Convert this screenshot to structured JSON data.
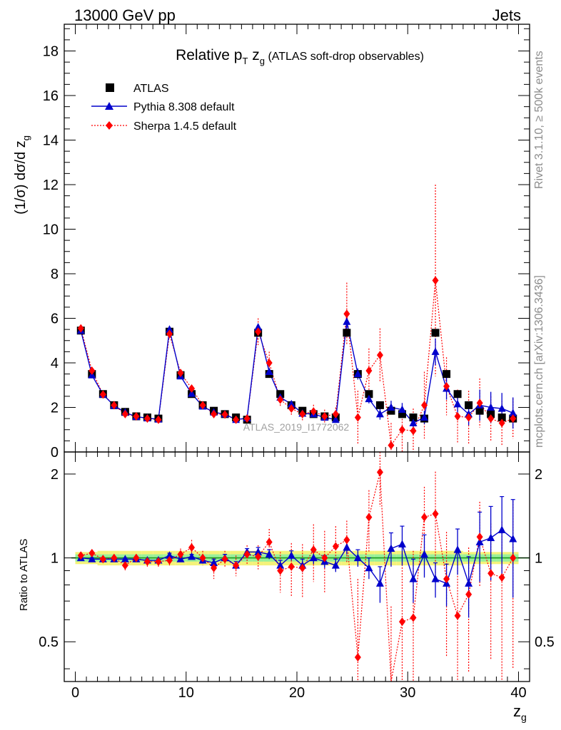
{
  "header": {
    "energy": "13000 GeV pp",
    "category": "Jets"
  },
  "side_text": {
    "rivet": "Rivet 3.1.10, ≥ 500k events",
    "mcplots": "mcplots.cern.ch [arXiv:1306.3436]"
  },
  "chart_data": {
    "type": "scatter",
    "title": "Relative pT zg (ATLAS soft-drop observables)",
    "title_parts": {
      "main": "Relative p",
      "sub1": "T",
      "mid": " z",
      "sub2": "g",
      "rest": " (ATLAS soft-drop observables)"
    },
    "watermark": "ATLAS_2019_I1772062",
    "xlabel": {
      "main": "z",
      "sub": "g"
    },
    "ylabel": {
      "main": "(1/σ) dσ/d z",
      "sub": "g"
    },
    "ratio_ylabel": "Ratio to ATLAS",
    "xlim": [
      -1,
      41
    ],
    "ylim": [
      0,
      19.2
    ],
    "ratio_ylim": [
      0.36,
      2.4
    ],
    "x_ticks": [
      "0",
      "10",
      "20",
      "30",
      "40"
    ],
    "y_ticks": [
      "0",
      "2",
      "4",
      "6",
      "8",
      "10",
      "12",
      "14",
      "16",
      "18"
    ],
    "ratio_ticks": [
      "0.5",
      "1",
      "2"
    ],
    "legend": [
      "ATLAS",
      "Pythia 8.308 default",
      "Sherpa 1.4.5 default"
    ],
    "x": [
      0.5,
      1.5,
      2.5,
      3.5,
      4.5,
      5.5,
      6.5,
      7.5,
      8.5,
      9.5,
      10.5,
      11.5,
      12.5,
      13.5,
      14.5,
      15.5,
      16.5,
      17.5,
      18.5,
      19.5,
      20.5,
      21.5,
      22.5,
      23.5,
      24.5,
      25.5,
      26.5,
      27.5,
      28.5,
      29.5,
      30.5,
      31.5,
      32.5,
      33.5,
      34.5,
      35.5,
      36.5,
      37.5,
      38.5,
      39.5
    ],
    "series": [
      {
        "name": "ATLAS",
        "values": [
          5.45,
          3.5,
          2.6,
          2.1,
          1.8,
          1.6,
          1.55,
          1.5,
          5.4,
          3.45,
          2.6,
          2.1,
          1.85,
          1.7,
          1.55,
          1.45,
          5.35,
          3.5,
          2.6,
          2.1,
          1.85,
          1.7,
          1.6,
          1.55,
          5.35,
          3.5,
          2.6,
          2.1,
          1.85,
          1.7,
          1.55,
          1.5,
          5.35,
          3.5,
          2.6,
          2.1,
          1.85,
          1.7,
          1.55,
          1.5
        ]
      },
      {
        "name": "Pythia 8.308 default",
        "values": [
          5.45,
          3.45,
          2.58,
          2.08,
          1.78,
          1.58,
          1.52,
          1.47,
          5.5,
          3.4,
          2.62,
          2.05,
          1.78,
          1.7,
          1.45,
          1.52,
          5.6,
          3.6,
          2.45,
          2.15,
          1.73,
          1.7,
          1.55,
          1.45,
          5.85,
          3.5,
          2.38,
          1.7,
          2.0,
          1.9,
          1.3,
          1.55,
          4.5,
          2.85,
          2.15,
          1.7,
          2.1,
          2.0,
          1.95,
          1.75
        ],
        "errors": [
          0.05,
          0.05,
          0.05,
          0.05,
          0.05,
          0.05,
          0.05,
          0.05,
          0.08,
          0.06,
          0.05,
          0.05,
          0.05,
          0.05,
          0.05,
          0.05,
          0.15,
          0.12,
          0.1,
          0.1,
          0.1,
          0.1,
          0.1,
          0.1,
          0.3,
          0.25,
          0.2,
          0.25,
          0.3,
          0.3,
          0.25,
          0.3,
          0.6,
          0.5,
          0.5,
          0.5,
          0.7,
          0.7,
          0.7,
          0.7
        ]
      },
      {
        "name": "Sherpa 1.4.5 default",
        "values": [
          5.55,
          3.65,
          2.58,
          2.1,
          1.7,
          1.6,
          1.5,
          1.45,
          5.3,
          3.55,
          2.85,
          2.1,
          1.7,
          1.68,
          1.45,
          1.5,
          5.4,
          4.0,
          2.35,
          1.95,
          1.7,
          1.82,
          1.6,
          1.7,
          6.2,
          1.55,
          3.65,
          4.35,
          0.3,
          1.0,
          0.95,
          2.1,
          7.7,
          2.95,
          1.6,
          1.55,
          2.2,
          1.5,
          1.3,
          1.5
        ],
        "errors": [
          0.08,
          0.08,
          0.08,
          0.08,
          0.08,
          0.08,
          0.08,
          0.08,
          0.2,
          0.15,
          0.15,
          0.1,
          0.1,
          0.1,
          0.1,
          0.1,
          0.6,
          0.5,
          0.3,
          0.3,
          0.3,
          0.3,
          0.3,
          0.3,
          1.4,
          1.2,
          1.0,
          1.2,
          1.0,
          1.0,
          1.0,
          1.5,
          4.3,
          1.3,
          1.2,
          1.2,
          1.1,
          1.0,
          1.0,
          0.9
        ]
      }
    ],
    "ratio": {
      "pythia": [
        1.0,
        0.99,
        0.99,
        0.99,
        0.99,
        0.99,
        0.98,
        0.98,
        1.02,
        0.99,
        1.01,
        0.98,
        0.96,
        1.0,
        0.94,
        1.05,
        1.05,
        1.03,
        0.94,
        1.02,
        0.94,
        1.0,
        0.97,
        0.94,
        1.09,
        1.0,
        0.92,
        0.81,
        1.08,
        1.12,
        0.84,
        1.03,
        0.84,
        0.81,
        1.07,
        0.81,
        1.14,
        1.18,
        1.26,
        1.17
      ],
      "pythia_err": [
        0.01,
        0.01,
        0.01,
        0.01,
        0.01,
        0.01,
        0.01,
        0.01,
        0.02,
        0.02,
        0.02,
        0.02,
        0.03,
        0.03,
        0.03,
        0.03,
        0.04,
        0.04,
        0.04,
        0.04,
        0.05,
        0.05,
        0.05,
        0.05,
        0.06,
        0.07,
        0.08,
        0.12,
        0.15,
        0.18,
        0.15,
        0.18,
        0.12,
        0.14,
        0.2,
        0.2,
        0.32,
        0.35,
        0.4,
        0.45
      ],
      "sherpa": [
        1.02,
        1.04,
        0.99,
        1.0,
        0.94,
        1.0,
        0.97,
        0.97,
        0.98,
        1.03,
        1.09,
        1.0,
        0.92,
        0.99,
        0.94,
        1.03,
        1.01,
        1.14,
        0.9,
        0.93,
        0.92,
        1.07,
        1.0,
        1.1,
        1.16,
        0.44,
        1.4,
        2.03,
        0.17,
        0.59,
        0.61,
        1.4,
        1.44,
        0.84,
        0.62,
        0.74,
        1.19,
        0.88,
        0.85,
        1.0
      ],
      "sherpa_err": [
        0.03,
        0.03,
        0.03,
        0.03,
        0.04,
        0.03,
        0.04,
        0.04,
        0.04,
        0.05,
        0.07,
        0.06,
        0.08,
        0.07,
        0.08,
        0.08,
        0.1,
        0.13,
        0.15,
        0.2,
        0.2,
        0.25,
        0.25,
        0.2,
        0.2,
        0.4,
        0.35,
        0.5,
        0.5,
        0.45,
        0.45,
        0.4,
        0.6,
        0.4,
        0.35,
        0.35,
        0.4,
        0.45,
        0.5,
        0.6
      ],
      "band_green": [
        0.03,
        0.03,
        0.03,
        0.03,
        0.03,
        0.03,
        0.03,
        0.03,
        0.03,
        0.03,
        0.03,
        0.03,
        0.03,
        0.03,
        0.03,
        0.03,
        0.03,
        0.03,
        0.03,
        0.03,
        0.03,
        0.03,
        0.03,
        0.03,
        0.03,
        0.03,
        0.03,
        0.03,
        0.03,
        0.03,
        0.03,
        0.03,
        0.03,
        0.03,
        0.03,
        0.03,
        0.03,
        0.03,
        0.03,
        0.03
      ],
      "band_yellow": [
        0.05,
        0.05,
        0.06,
        0.06,
        0.06,
        0.06,
        0.06,
        0.06,
        0.06,
        0.06,
        0.06,
        0.06,
        0.06,
        0.06,
        0.06,
        0.06,
        0.06,
        0.06,
        0.06,
        0.06,
        0.06,
        0.06,
        0.06,
        0.06,
        0.06,
        0.06,
        0.06,
        0.06,
        0.06,
        0.06,
        0.06,
        0.06,
        0.06,
        0.06,
        0.06,
        0.05,
        0.05,
        0.05,
        0.05,
        0.05
      ]
    }
  },
  "colors": {
    "atlas": "#000000",
    "pythia": "#0000cc",
    "sherpa": "#ff0000",
    "band_green": "#98f09a",
    "band_yellow": "#f4f27a",
    "ratio_line": "#1a9a1a"
  }
}
